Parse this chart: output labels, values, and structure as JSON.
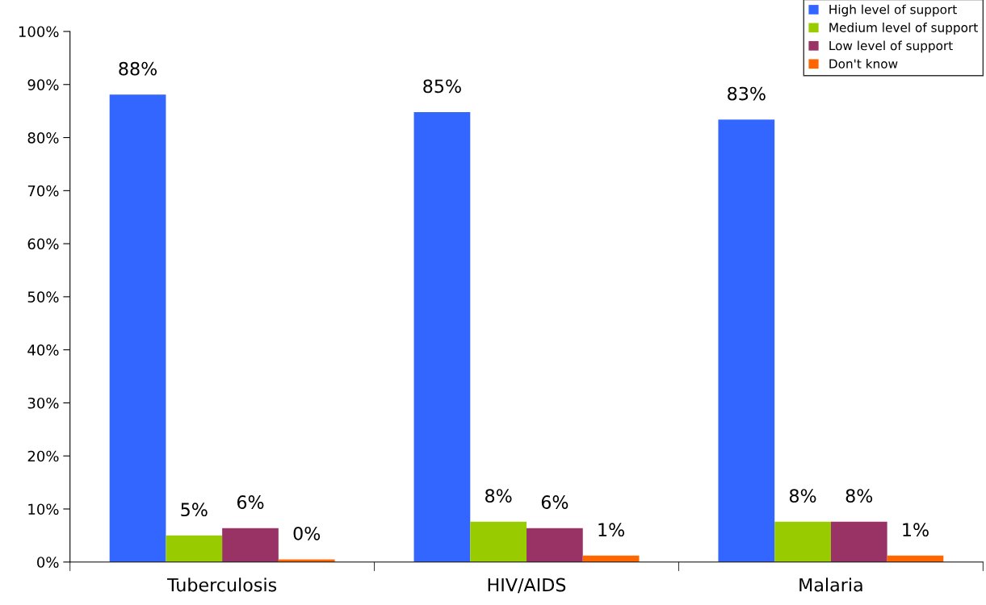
{
  "chart_data": {
    "type": "bar",
    "categories": [
      "Tuberculosis",
      "HIV/AIDS",
      "Malaria"
    ],
    "series": [
      {
        "name": "High level of support",
        "color": "#3366ff",
        "values": [
          88.1,
          84.8,
          83.4
        ],
        "value_labels": [
          "88%",
          "85%",
          "83%"
        ]
      },
      {
        "name": "Medium level of support",
        "color": "#99cc00",
        "values": [
          5.0,
          7.6,
          7.6
        ],
        "value_labels": [
          "5%",
          "8%",
          "8%"
        ]
      },
      {
        "name": "Low level of support",
        "color": "#993366",
        "values": [
          6.4,
          6.4,
          7.6
        ],
        "value_labels": [
          "6%",
          "6%",
          "8%"
        ]
      },
      {
        "name": "Don't know",
        "color": "#ff6600",
        "values": [
          0.5,
          1.2,
          1.2
        ],
        "value_labels": [
          "0%",
          "1%",
          "1%"
        ]
      }
    ],
    "ylim": [
      0,
      100
    ],
    "yticks": [
      {
        "value": 0,
        "label": "0%"
      },
      {
        "value": 10,
        "label": "10%"
      },
      {
        "value": 20,
        "label": "20%"
      },
      {
        "value": 30,
        "label": "30%"
      },
      {
        "value": 40,
        "label": "40%"
      },
      {
        "value": 50,
        "label": "50%"
      },
      {
        "value": 60,
        "label": "60%"
      },
      {
        "value": 70,
        "label": "70%"
      },
      {
        "value": 80,
        "label": "80%"
      },
      {
        "value": 90,
        "label": "90%"
      },
      {
        "value": 100,
        "label": "100%"
      }
    ],
    "grid": false,
    "legend": "top right"
  }
}
